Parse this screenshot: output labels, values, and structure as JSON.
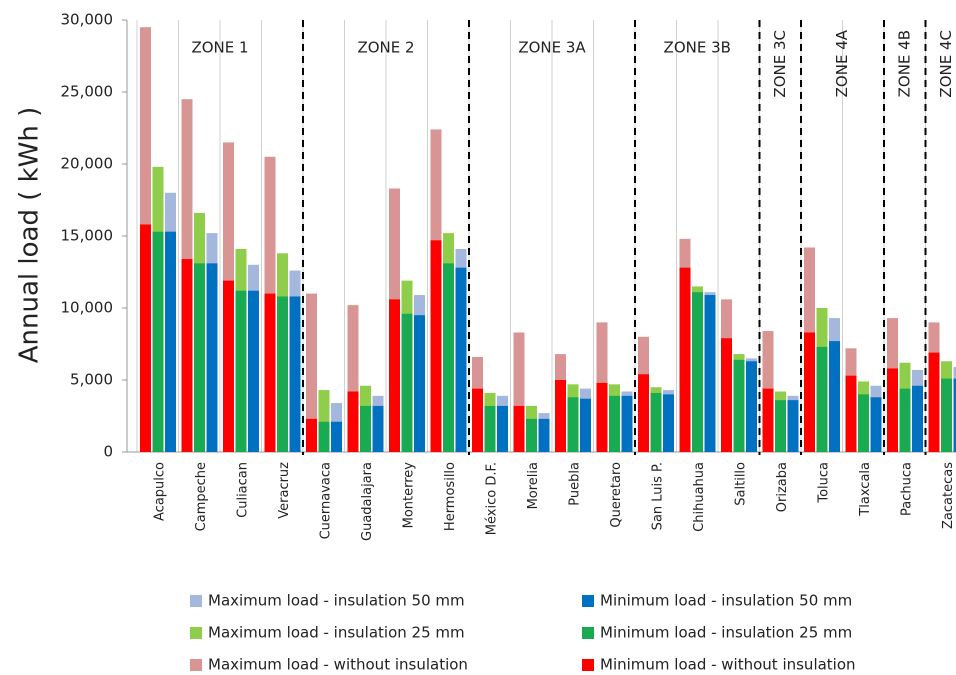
{
  "chart_data": {
    "type": "bar",
    "y_label": "Annual load ( kWh )",
    "ylim": [
      0,
      30000
    ],
    "yticks": [
      0,
      {
        "value": 5000,
        "label": "5,000"
      },
      {
        "value": 10000,
        "label": "10,000"
      },
      {
        "value": 15000,
        "label": "15,000"
      },
      {
        "value": 20000,
        "label": "20,000"
      },
      {
        "value": 25000,
        "label": "25,000"
      },
      {
        "value": 30000,
        "label": "30,000"
      }
    ],
    "groups": [
      {
        "name": "ZONE 1",
        "categories": [
          "Acapulco",
          "Campeche",
          "Culiacan",
          "Veracruz"
        ]
      },
      {
        "name": "ZONE 2",
        "categories": [
          "Cuernavaca",
          "Guadalajara",
          "Monterrey",
          "Hermosillo"
        ]
      },
      {
        "name": "ZONE 3A",
        "categories": [
          "México D.F.",
          "Morelia",
          "Puebla",
          "Queretaro"
        ]
      },
      {
        "name": "ZONE 3B",
        "categories": [
          "San Luis P.",
          "Chihuahua",
          "Saltillo"
        ]
      },
      {
        "name": "ZONE 3C",
        "categories": [
          "Orizaba"
        ]
      },
      {
        "name": "ZONE 4A",
        "categories": [
          "Toluca",
          "Tlaxcala"
        ]
      },
      {
        "name": "ZONE 4B",
        "categories": [
          "Pachuca"
        ]
      },
      {
        "name": "ZONE 4C",
        "categories": [
          "Zacatecas"
        ]
      }
    ],
    "series": [
      {
        "name": "Maximum load - insulation 50 mm",
        "color": "#a3b8dc",
        "values": [
          18000,
          15200,
          13000,
          12600,
          3400,
          3900,
          10900,
          14100,
          3900,
          2700,
          4400,
          4200,
          4300,
          11100,
          6500,
          3900,
          9300,
          4600,
          5700,
          5900
        ]
      },
      {
        "name": "Maximum load - insulation 25 mm",
        "color": "#8fce4a",
        "values": [
          19800,
          16600,
          14100,
          13800,
          4300,
          4600,
          11900,
          15200,
          4100,
          3200,
          4700,
          4700,
          4500,
          11500,
          6800,
          4200,
          10000,
          4900,
          6200,
          6300
        ]
      },
      {
        "name": "Maximum load - without insulation",
        "color": "#d99594",
        "values": [
          29500,
          24500,
          21500,
          20500,
          11000,
          10200,
          18300,
          22400,
          6600,
          8300,
          6800,
          9000,
          8000,
          14800,
          10600,
          8400,
          14200,
          7200,
          9300,
          9000
        ]
      },
      {
        "name": "Minimum load - insulation 50 mm",
        "color": "#0070c0",
        "values": [
          15300,
          13100,
          11200,
          10800,
          2100,
          3200,
          9500,
          12800,
          3200,
          2300,
          3700,
          3900,
          4000,
          10900,
          6300,
          3600,
          7700,
          3800,
          4600,
          5100
        ]
      },
      {
        "name": "Minimum load - insulation 25 mm",
        "color": "#1aab52",
        "values": [
          15300,
          13100,
          11200,
          10800,
          2100,
          3200,
          9600,
          13100,
          3200,
          2300,
          3800,
          3900,
          4100,
          11100,
          6400,
          3600,
          7300,
          4000,
          4400,
          5100
        ]
      },
      {
        "name": "Minimum load - without insulation",
        "color": "#ff0000",
        "values": [
          15800,
          13400,
          11900,
          11000,
          2300,
          4200,
          10600,
          14700,
          4400,
          3200,
          5000,
          4800,
          5400,
          12800,
          7900,
          4400,
          8300,
          5300,
          5800,
          6900
        ]
      }
    ]
  }
}
